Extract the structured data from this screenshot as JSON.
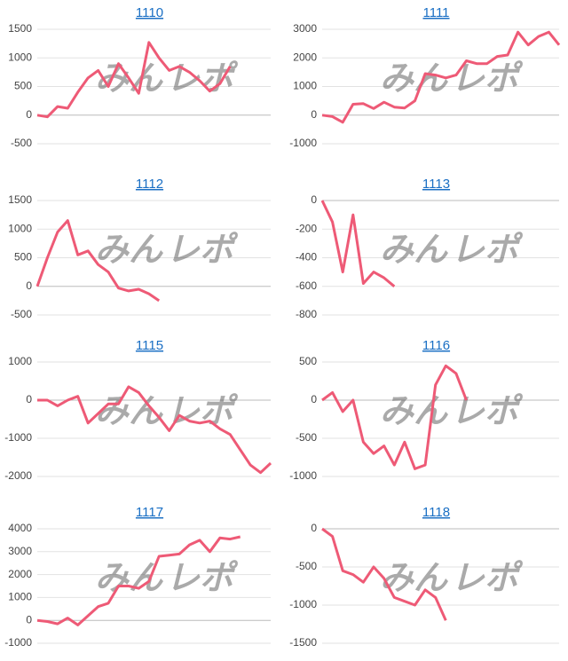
{
  "watermark": [
    "みん",
    "レポ"
  ],
  "chart_data": [
    {
      "type": "line",
      "title": "1110",
      "color": "#ee5a76",
      "grid": true,
      "categories": [
        null,
        null,
        null,
        null,
        null,
        null,
        null,
        null,
        null,
        null,
        null,
        null,
        null,
        null,
        null,
        null,
        null,
        null,
        null,
        null
      ],
      "values": [
        0,
        -30,
        150,
        120,
        400,
        650,
        780,
        500,
        900,
        650,
        380,
        1270,
        1000,
        780,
        850,
        750,
        600,
        420,
        550,
        850
      ],
      "ylim": [
        -500,
        1500
      ],
      "yticks": [
        -500,
        0,
        500,
        1000,
        1500
      ]
    },
    {
      "type": "line",
      "title": "1111",
      "color": "#ee5a76",
      "grid": true,
      "categories": [
        null,
        null,
        null,
        null,
        null,
        null,
        null,
        null,
        null,
        null,
        null,
        null,
        null,
        null,
        null,
        null,
        null,
        null,
        null,
        null,
        null,
        null,
        null,
        null
      ],
      "values": [
        0,
        -50,
        -250,
        380,
        400,
        230,
        450,
        280,
        250,
        500,
        1450,
        1400,
        1300,
        1400,
        1900,
        1800,
        1800,
        2050,
        2100,
        2900,
        2450,
        2750,
        2900,
        2450
      ],
      "ylim": [
        -1000,
        3000
      ],
      "yticks": [
        -1000,
        0,
        1000,
        2000,
        3000
      ]
    },
    {
      "type": "line",
      "title": "1112",
      "color": "#ee5a76",
      "grid": true,
      "categories": [
        null,
        null,
        null,
        null,
        null,
        null,
        null,
        null,
        null,
        null,
        null,
        null,
        null
      ],
      "values": [
        0,
        500,
        950,
        1150,
        550,
        620,
        380,
        250,
        -30,
        -80,
        -50,
        -130,
        -250
      ],
      "ylim": [
        -500,
        1500
      ],
      "yticks": [
        -500,
        0,
        500,
        1000,
        1500
      ]
    },
    {
      "type": "line",
      "title": "1113",
      "color": "#ee5a76",
      "grid": true,
      "categories": [
        null,
        null,
        null,
        null,
        null,
        null,
        null,
        null
      ],
      "values": [
        0,
        -150,
        -500,
        -100,
        -580,
        -500,
        -540,
        -600
      ],
      "ylim": [
        -800,
        0
      ],
      "yticks": [
        -800,
        -600,
        -400,
        -200,
        0
      ]
    },
    {
      "type": "line",
      "title": "1115",
      "color": "#ee5a76",
      "grid": true,
      "categories": [
        null,
        null,
        null,
        null,
        null,
        null,
        null,
        null,
        null,
        null,
        null,
        null,
        null,
        null,
        null,
        null,
        null,
        null,
        null,
        null,
        null,
        null,
        null,
        null
      ],
      "values": [
        0,
        0,
        -150,
        0,
        100,
        -600,
        -350,
        -100,
        -100,
        350,
        200,
        -150,
        -450,
        -800,
        -400,
        -550,
        -600,
        -550,
        -750,
        -900,
        -1300,
        -1700,
        -1900,
        -1650
      ],
      "ylim": [
        -2000,
        1000
      ],
      "yticks": [
        -2000,
        -1000,
        0,
        1000
      ]
    },
    {
      "type": "line",
      "title": "1116",
      "color": "#ee5a76",
      "grid": true,
      "categories": [
        null,
        null,
        null,
        null,
        null,
        null,
        null,
        null,
        null,
        null,
        null,
        null,
        null,
        null,
        null
      ],
      "values": [
        0,
        100,
        -150,
        0,
        -550,
        -700,
        -600,
        -850,
        -550,
        -900,
        -850,
        200,
        450,
        350,
        0
      ],
      "ylim": [
        -1000,
        500
      ],
      "yticks": [
        -1000,
        -500,
        0,
        500
      ]
    },
    {
      "type": "line",
      "title": "1117",
      "color": "#ee5a76",
      "grid": true,
      "categories": [
        null,
        null,
        null,
        null,
        null,
        null,
        null,
        null,
        null,
        null,
        null,
        null,
        null,
        null,
        null,
        null,
        null,
        null,
        null,
        null,
        null
      ],
      "values": [
        0,
        -50,
        -150,
        100,
        -200,
        200,
        600,
        750,
        1500,
        1500,
        1400,
        1700,
        2800,
        2850,
        2900,
        3300,
        3500,
        3000,
        3600,
        3550,
        3650
      ],
      "ylim": [
        -1000,
        4000
      ],
      "yticks": [
        -1000,
        0,
        1000,
        2000,
        3000,
        4000
      ]
    },
    {
      "type": "line",
      "title": "1118",
      "color": "#ee5a76",
      "grid": true,
      "categories": [
        null,
        null,
        null,
        null,
        null,
        null,
        null,
        null,
        null,
        null,
        null,
        null,
        null
      ],
      "values": [
        0,
        -100,
        -550,
        -600,
        -700,
        -500,
        -650,
        -900,
        -950,
        -1000,
        -800,
        -900,
        -1200
      ],
      "ylim": [
        -1500,
        0
      ],
      "yticks": [
        -1500,
        -1000,
        -500,
        0
      ]
    }
  ]
}
